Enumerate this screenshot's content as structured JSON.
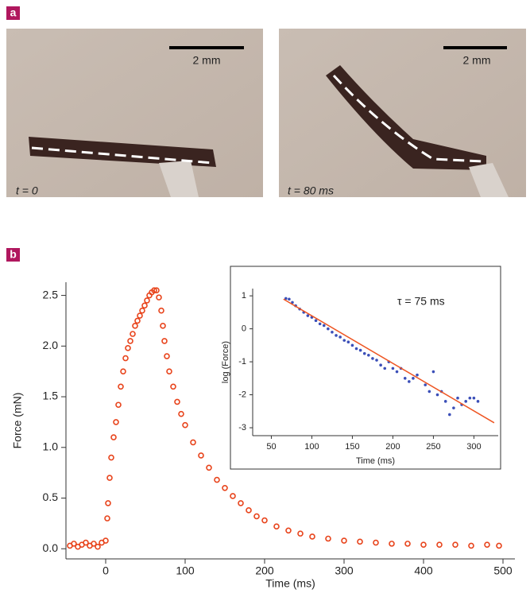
{
  "panels": {
    "a": {
      "label": "a",
      "photos": [
        {
          "scale": "2 mm",
          "time": "t = 0"
        },
        {
          "scale": "2 mm",
          "time": "t = 80 ms"
        }
      ]
    },
    "b": {
      "label": "b"
    }
  },
  "chart_data": [
    {
      "type": "scatter",
      "x_label": "Time (ms)",
      "y_label": "Force (mN)",
      "xlim": [
        -50,
        515
      ],
      "ylim": [
        -0.1,
        2.63
      ],
      "xticks": [
        0,
        100,
        200,
        300,
        400,
        500
      ],
      "yticks": [
        {
          "value": 0,
          "label": "0.0"
        },
        0.5,
        {
          "value": 1,
          "label": "1.0"
        },
        1.5,
        {
          "value": 2,
          "label": "2.0"
        },
        2.5
      ],
      "series": [
        {
          "color": "#e8441c",
          "x": [
            -45,
            -40,
            -35,
            -30,
            -25,
            -20,
            -15,
            -10,
            -5,
            0,
            2,
            3,
            5,
            7,
            10,
            13,
            16,
            19,
            22,
            25,
            28,
            31,
            34,
            37,
            40,
            43,
            46,
            49,
            52,
            55,
            58,
            61,
            64,
            67,
            70,
            72,
            74,
            77,
            80,
            85,
            90,
            95,
            100,
            110,
            120,
            130,
            140,
            150,
            160,
            170,
            180,
            190,
            200,
            215,
            230,
            245,
            260,
            280,
            300,
            320,
            340,
            360,
            380,
            400,
            420,
            440,
            460,
            480,
            495
          ],
          "values": [
            0.03,
            0.05,
            0.02,
            0.04,
            0.06,
            0.03,
            0.05,
            0.02,
            0.06,
            0.08,
            0.3,
            0.45,
            0.7,
            0.9,
            1.1,
            1.25,
            1.42,
            1.6,
            1.75,
            1.88,
            1.98,
            2.05,
            2.12,
            2.2,
            2.25,
            2.3,
            2.35,
            2.4,
            2.45,
            2.5,
            2.53,
            2.55,
            2.55,
            2.48,
            2.35,
            2.2,
            2.05,
            1.9,
            1.75,
            1.6,
            1.45,
            1.33,
            1.22,
            1.05,
            0.92,
            0.8,
            0.68,
            0.6,
            0.52,
            0.45,
            0.38,
            0.32,
            0.28,
            0.22,
            0.18,
            0.15,
            0.12,
            0.1,
            0.08,
            0.07,
            0.06,
            0.05,
            0.05,
            0.04,
            0.04,
            0.04,
            0.03,
            0.04,
            0.03
          ]
        }
      ]
    },
    {
      "type": "scatter",
      "x_label": "Time (ms)",
      "y_label": "log (Force)",
      "annotation": "τ = 75 ms",
      "xlim": [
        27,
        330
      ],
      "ylim": [
        -3.24,
        1.22
      ],
      "xticks": [
        50,
        100,
        150,
        200,
        250,
        300
      ],
      "yticks": [
        -3,
        -2,
        -1,
        0,
        1
      ],
      "series": [
        {
          "color": "#3b4fb8",
          "mode": "points",
          "x": [
            68,
            72,
            76,
            80,
            85,
            90,
            95,
            100,
            105,
            110,
            115,
            120,
            125,
            130,
            135,
            140,
            145,
            150,
            155,
            160,
            165,
            170,
            175,
            180,
            185,
            190,
            195,
            200,
            205,
            210,
            215,
            220,
            225,
            230,
            240,
            245,
            250,
            255,
            260,
            265,
            270,
            275,
            280,
            285,
            290,
            295,
            300,
            305
          ],
          "values": [
            0.92,
            0.9,
            0.8,
            0.7,
            0.6,
            0.5,
            0.4,
            0.35,
            0.25,
            0.15,
            0.1,
            0.0,
            -0.1,
            -0.2,
            -0.25,
            -0.35,
            -0.4,
            -0.5,
            -0.6,
            -0.65,
            -0.75,
            -0.8,
            -0.9,
            -0.95,
            -1.1,
            -1.2,
            -1.0,
            -1.2,
            -1.3,
            -1.2,
            -1.5,
            -1.6,
            -1.5,
            -1.4,
            -1.7,
            -1.9,
            -1.3,
            -2.0,
            -1.9,
            -2.2,
            -2.6,
            -2.4,
            -2.1,
            -2.3,
            -2.2,
            -2.1,
            -2.1,
            -2.2
          ]
        },
        {
          "color": "#ee5522",
          "mode": "line",
          "x": [
            65,
            325
          ],
          "values": [
            0.9,
            -2.85
          ]
        }
      ]
    }
  ]
}
